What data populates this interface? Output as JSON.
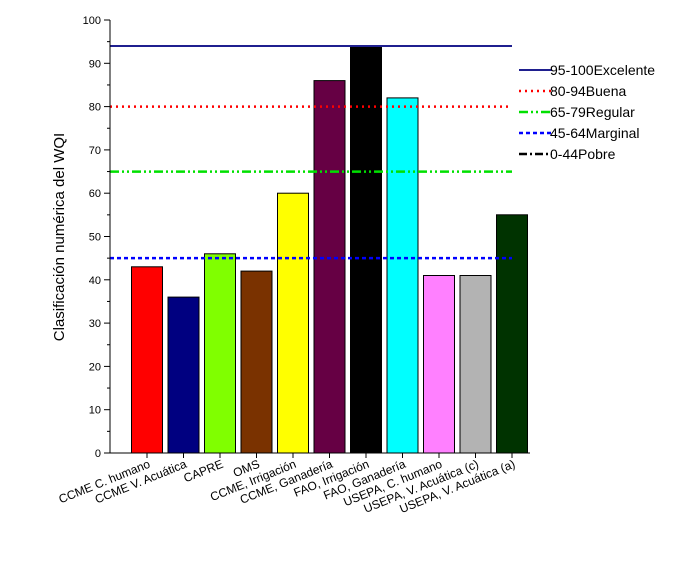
{
  "chart_data": {
    "type": "bar",
    "categories": [
      "CCME C. humano",
      "CCME V. Acuática",
      "CAPRE",
      "OMS",
      "CCME, Irrigación",
      "CCME, Ganadería",
      "FAO, Irrigación",
      "FAO, Ganadería",
      "USEPA, C. humano",
      "USEPA, V. Acuática (c)",
      "USEPA, V. Acuática (a)"
    ],
    "values": [
      43,
      36,
      46,
      42,
      60,
      86,
      94,
      82,
      41,
      41,
      55
    ],
    "bar_colors": [
      "#ff0000",
      "#000080",
      "#80ff00",
      "#7a3200",
      "#ffff00",
      "#660044",
      "#000000",
      "#00ffff",
      "#ff80ff",
      "#b3b3b3",
      "#003300"
    ],
    "ylabel": "Clasificación numérica del WQI",
    "xlabel": "",
    "title": "",
    "ylim": [
      0,
      100
    ],
    "yticks": [
      0,
      10,
      20,
      30,
      40,
      50,
      60,
      70,
      80,
      90,
      100
    ],
    "threshold_lines": [
      {
        "name": "95-100Excelente",
        "value": 94,
        "color": "#1f1f8f",
        "style": "solid"
      },
      {
        "name": "80-94Buena",
        "value": 80,
        "color": "#ff0000",
        "style": "dot"
      },
      {
        "name": "65-79Regular",
        "value": 65,
        "color": "#00e000",
        "style": "dashdotdot"
      },
      {
        "name": "45-64Marginal",
        "value": 45,
        "color": "#0000ff",
        "style": "dash"
      },
      {
        "name": "0-44Pobre",
        "value": null,
        "color": "#000000",
        "style": "dashdot"
      }
    ],
    "legend_position": "right",
    "grid": false
  }
}
